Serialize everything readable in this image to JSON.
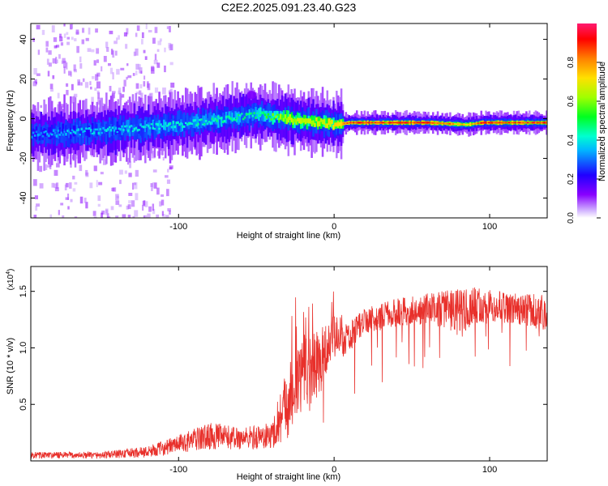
{
  "title": "C2E2.2025.091.23.40.G23",
  "colors": {
    "snr_line": "#e8302b",
    "axis": "#000000",
    "background": "#ffffff",
    "spectrum_floor": "#2200ff"
  },
  "chart_data": [
    {
      "type": "heatmap",
      "xlabel": "Height of straight line (km)",
      "ylabel": "Frequency (Hz)",
      "xlim": [
        -195,
        137
      ],
      "ylim": [
        -50,
        48
      ],
      "xticks": [
        -100,
        0,
        100
      ],
      "xtick_labels": [
        "-100",
        "0",
        "100"
      ],
      "yticks": [
        -40,
        -20,
        0,
        20,
        40
      ],
      "ytick_labels": [
        "-40",
        "-20",
        "0",
        "20",
        "40"
      ],
      "grid": false,
      "colorbar": {
        "label": "Normalized spectral amplitude",
        "range": [
          0,
          1
        ],
        "ticks": [
          0.0,
          0.2,
          0.4,
          0.6,
          0.8
        ],
        "tick_labels": [
          "0.0",
          "0.2",
          "0.4",
          "0.6",
          "0.8"
        ],
        "colormap": "rainbow (magenta-blue-cyan-green-yellow-orange-red)"
      },
      "ridge": {
        "x": [
          -195,
          -150,
          -100,
          -50,
          -30,
          0,
          10,
          60,
          85,
          95,
          137
        ],
        "frequency": [
          -8,
          -6,
          -3,
          2,
          0,
          -3,
          -2,
          -2,
          -3,
          -2,
          -2
        ],
        "amplitude": [
          0.35,
          0.4,
          0.45,
          0.5,
          0.7,
          0.75,
          0.95,
          0.95,
          0.8,
          0.95,
          0.95
        ]
      }
    },
    {
      "type": "line",
      "xlabel": "Height of straight line (km)",
      "ylabel": "SNR (10 * v/v)",
      "y_multiplier": "(x10",
      "y_multiplier_exp": "4",
      "y_multiplier_close": ")",
      "xlim": [
        -195,
        137
      ],
      "ylim": [
        0,
        1.72
      ],
      "xticks": [
        -100,
        0,
        100
      ],
      "xtick_labels": [
        "-100",
        "0",
        "100"
      ],
      "yticks": [
        0.5,
        1.0,
        1.5
      ],
      "ytick_labels": [
        "0.5",
        "1.0",
        "1.5"
      ],
      "grid": false,
      "series": [
        {
          "envelope_x": [
            -195,
            -150,
            -120,
            -100,
            -80,
            -60,
            -40,
            -30,
            -20,
            -10,
            0,
            10,
            20,
            40,
            60,
            80,
            100,
            110,
            137
          ],
          "envelope_y": [
            0.05,
            0.05,
            0.08,
            0.15,
            0.22,
            0.2,
            0.22,
            0.55,
            0.8,
            0.85,
            1.1,
            1.2,
            1.32,
            1.4,
            1.45,
            1.47,
            1.5,
            1.45,
            1.43
          ],
          "noise_amplitude": [
            0.03,
            0.03,
            0.05,
            0.08,
            0.12,
            0.1,
            0.12,
            0.35,
            0.35,
            0.3,
            0.2,
            0.12,
            0.1,
            0.12,
            0.12,
            0.18,
            0.15,
            0.12,
            0.15
          ]
        }
      ]
    }
  ]
}
